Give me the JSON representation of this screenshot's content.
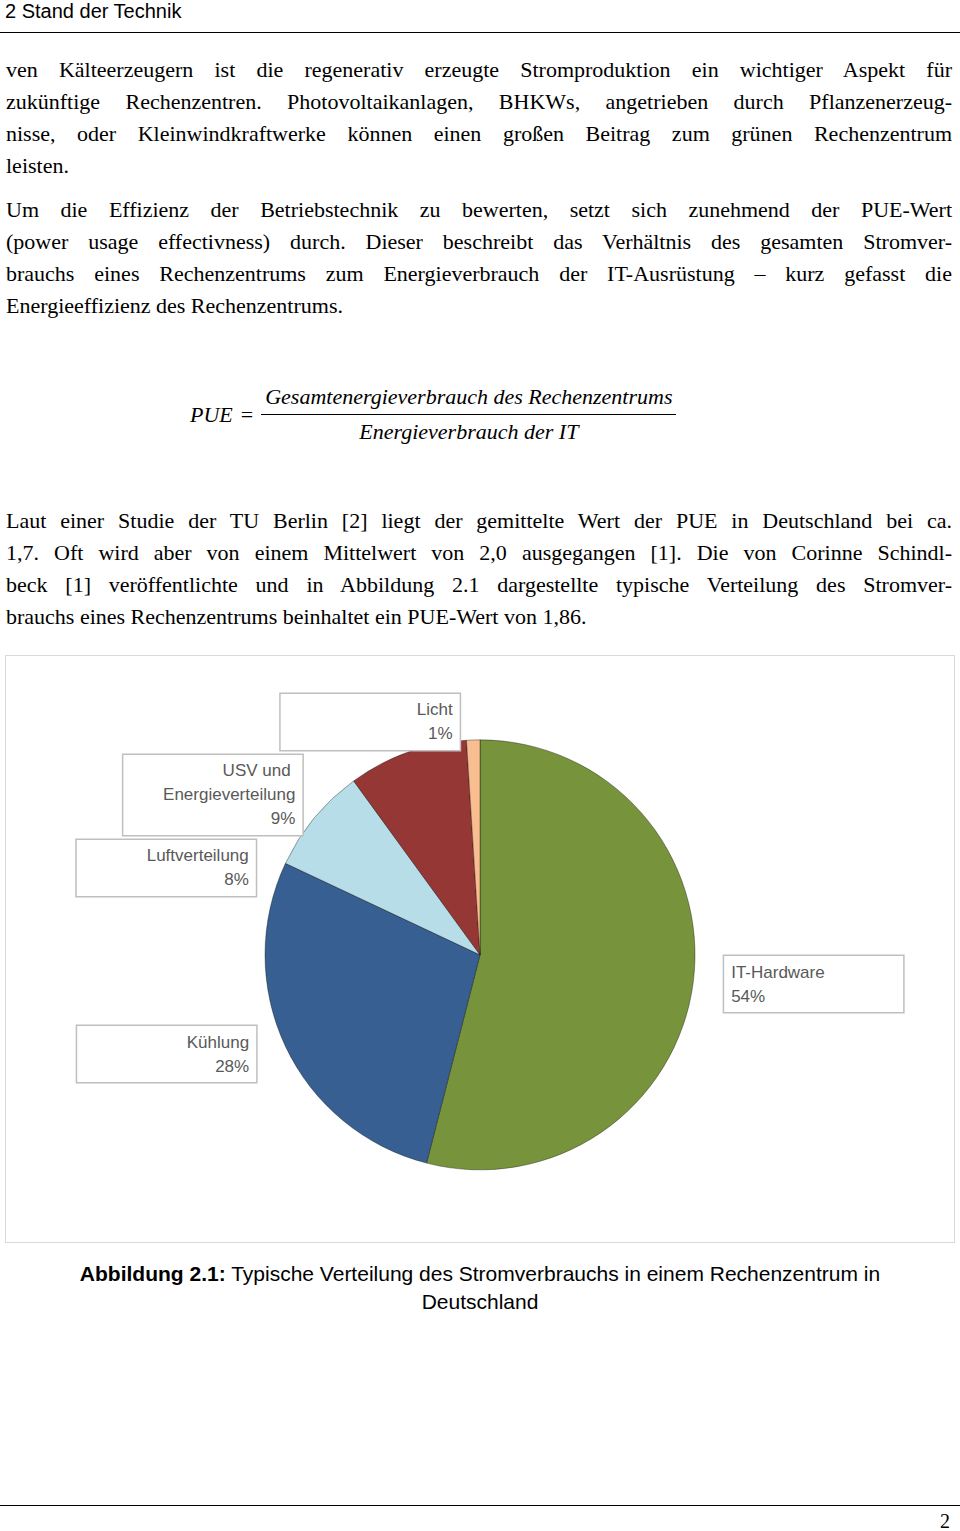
{
  "header": {
    "title": "2 Stand der Technik"
  },
  "body": [
    {
      "lines": [
        "ven Kälteerzeugern ist die regenerativ erzeugte Stromproduktion ein wichtiger Aspekt für",
        "zukünftige Rechenzentren. Photovoltaikanlagen, BHKWs, angetrieben durch Pflanzenerzeug-",
        "nisse, oder Kleinwindkraftwerke können einen großen Beitrag zum grünen Rechenzentrum",
        "leisten."
      ]
    },
    {
      "lines": [
        "Um die Effizienz der Betriebstechnik zu bewerten, setzt sich zunehmend der PUE-Wert",
        "(power usage effectivness) durch. Dieser beschreibt das Verhältnis des gesamten Stromver-",
        "brauchs eines Rechenzentrums zum Energieverbrauch der IT-Ausrüstung – kurz gefasst die",
        "Energieeffizienz des Rechenzentrums."
      ]
    },
    {
      "formula": {
        "lhs": "PUE",
        "operator": "=",
        "numerator": "Gesamtenergieverbrauch des Rechenzentrums",
        "denominator": "Energieverbrauch der IT"
      }
    },
    {
      "lines": [
        "Laut einer Studie der TU Berlin [2] liegt der gemittelte Wert der PUE in Deutschland bei ca.",
        "1,7. Oft wird aber von einem Mittelwert von 2,0 ausgegangen [1]. Die von Corinne Schindl-",
        "beck [1] veröffentlichte und in Abbildung 2.1 dargestellte typische Verteilung des Stromver-",
        "brauchs eines Rechenzentrums beinhaltet ein PUE-Wert von 1,86."
      ]
    }
  ],
  "chart_data": {
    "type": "pie",
    "categories": [
      "IT-Hardware",
      "Kühlung",
      "Luftverteilung",
      "USV und Energieverteilung",
      "Licht"
    ],
    "values": [
      54,
      28,
      8,
      9,
      1
    ],
    "value_labels": [
      "54%",
      "28%",
      "8%",
      "9%",
      "1%"
    ],
    "colors": [
      "#77933c",
      "#375f92",
      "#b7dde8",
      "#953735",
      "#f9be8f"
    ],
    "data_labels": true
  },
  "caption": {
    "label": "Abbildung 2.1:",
    "lines": [
      "Typische Verteilung des Stromverbrauchs in einem Rechenzentrum in",
      "Deutschland"
    ]
  },
  "page_number": "2"
}
